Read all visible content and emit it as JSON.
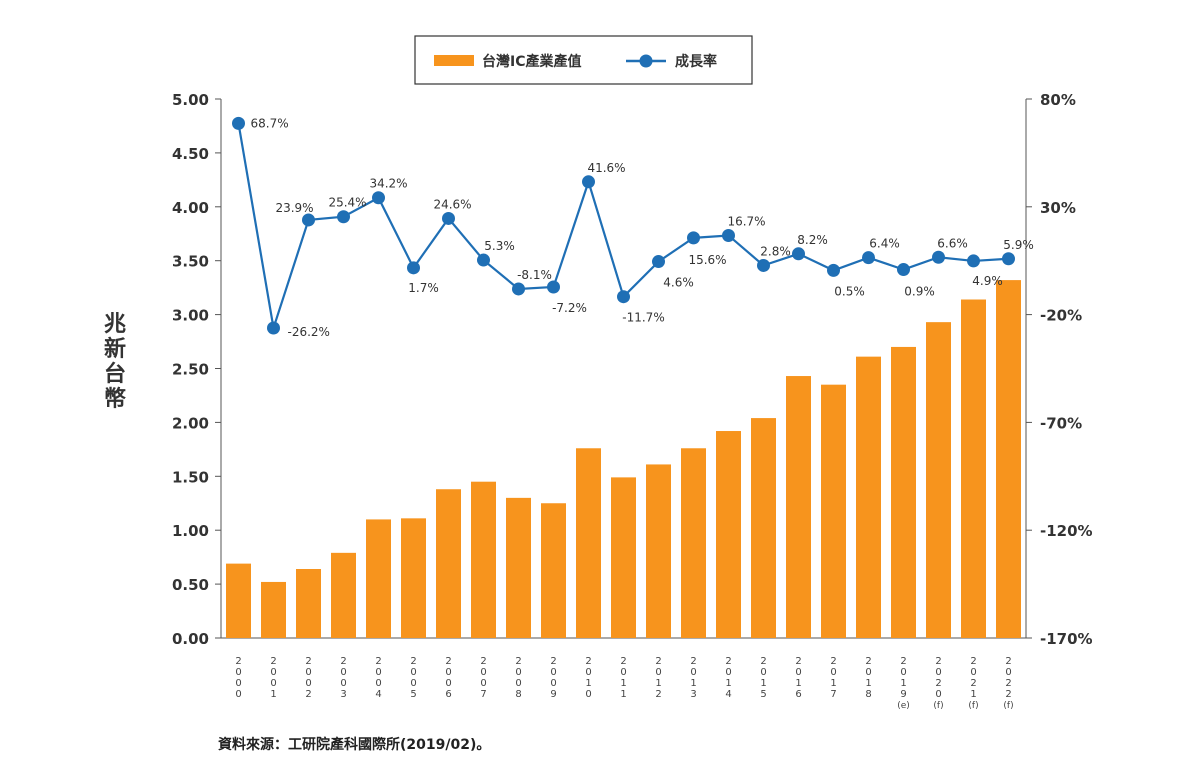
{
  "chart_data": {
    "type": "bar",
    "legend": {
      "placement": "top",
      "items": [
        {
          "name": "台灣IC產業產值",
          "color": "#f7941d",
          "kind": "bar"
        },
        {
          "name": "成長率",
          "color": "#1f6fb5",
          "kind": "line"
        }
      ]
    },
    "ylabel": "兆新台幣",
    "ylim": [
      0,
      5
    ],
    "y_ticks": [
      "0.00",
      "0.50",
      "1.00",
      "1.50",
      "2.00",
      "2.50",
      "3.00",
      "3.50",
      "4.00",
      "4.50",
      "5.00"
    ],
    "y2lim": [
      -170,
      80
    ],
    "y2_ticks": [
      "-170%",
      "-120%",
      "-70%",
      "-20%",
      "30%",
      "80%"
    ],
    "categories": [
      "2000",
      "2001",
      "2002",
      "2003",
      "2004",
      "2005",
      "2006",
      "2007",
      "2008",
      "2009",
      "2010",
      "2011",
      "2012",
      "2013",
      "2014",
      "2015",
      "2016",
      "2017",
      "2018",
      "2019",
      "2020",
      "2021",
      "2022"
    ],
    "category_suffix": [
      "",
      "",
      "",
      "",
      "",
      "",
      "",
      "",
      "",
      "",
      "",
      "",
      "",
      "",
      "",
      "",
      "",
      "",
      "",
      "(e)",
      "(f)",
      "(f)",
      "(f)"
    ],
    "series": [
      {
        "name": "台灣IC產業產值",
        "type": "bar",
        "axis": "left",
        "color": "#f7941d",
        "values": [
          0.69,
          0.52,
          0.64,
          0.79,
          1.1,
          1.11,
          1.38,
          1.45,
          1.3,
          1.25,
          1.76,
          1.49,
          1.61,
          1.76,
          1.92,
          2.04,
          2.43,
          2.35,
          2.61,
          2.7,
          2.93,
          3.14,
          3.32
        ]
      },
      {
        "name": "成長率",
        "type": "line",
        "axis": "right",
        "color": "#1f6fb5",
        "values": [
          68.7,
          -26.2,
          23.9,
          25.4,
          34.2,
          1.7,
          24.6,
          5.3,
          -8.1,
          -7.2,
          41.6,
          -11.7,
          4.6,
          15.6,
          16.7,
          2.8,
          8.2,
          0.5,
          6.4,
          0.9,
          6.6,
          4.9,
          5.9
        ],
        "labels": [
          "68.7%",
          "-26.2%",
          "23.9%",
          "25.4%",
          "34.2%",
          "1.7%",
          "24.6%",
          "5.3%",
          "-8.1%",
          "-7.2%",
          "41.6%",
          "-11.7%",
          "4.6%",
          "15.6%",
          "16.7%",
          "2.8%",
          "8.2%",
          "0.5%",
          "6.4%",
          "0.9%",
          "6.6%",
          "4.9%",
          "5.9%"
        ]
      }
    ],
    "grid": false
  },
  "source_note": "資料來源：工研院產科國際所(2019/02)。"
}
